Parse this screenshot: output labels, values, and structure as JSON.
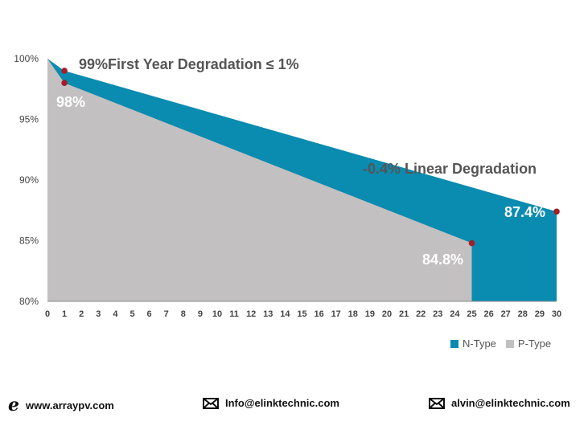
{
  "chart_data": {
    "type": "area",
    "title": "",
    "xlabel": "",
    "ylabel": "",
    "x_ticks": [
      "0",
      "1",
      "2",
      "3",
      "4",
      "5",
      "6",
      "7",
      "8",
      "9",
      "10",
      "11",
      "12",
      "13",
      "14",
      "15",
      "16",
      "17",
      "18",
      "19",
      "20",
      "21",
      "22",
      "23",
      "24",
      "25",
      "26",
      "27",
      "28",
      "29",
      "30"
    ],
    "y_ticks": [
      "80%",
      "85%",
      "90%",
      "95%",
      "100%"
    ],
    "xlim": [
      0,
      30
    ],
    "ylim": [
      80,
      100
    ],
    "series": [
      {
        "name": "N-Type",
        "color": "#0a8bb0",
        "x": [
          0,
          1,
          30
        ],
        "values": [
          100,
          99,
          87.4
        ]
      },
      {
        "name": "P-Type",
        "color": "#c2c0c1",
        "x": [
          0,
          1,
          25
        ],
        "values": [
          100,
          98,
          84.8
        ]
      }
    ],
    "annotations": [
      {
        "text": "99%",
        "style": "dark"
      },
      {
        "text": "First Year Degradation ≤ 1%",
        "style": "dark"
      },
      {
        "text": "98%",
        "style": "white"
      },
      {
        "text": "-0.4% Linear Degradation",
        "style": "dark"
      },
      {
        "text": "87.4%",
        "style": "white"
      },
      {
        "text": "84.8%",
        "style": "white"
      }
    ],
    "marker_color": "#a31f2a",
    "legend": [
      "N-Type",
      "P-Type"
    ],
    "legend_position": "bottom-right"
  },
  "footer": {
    "website": "www.arraypv.com",
    "email1": "Info@elinktechnic.com",
    "email2": "alvin@elinktechnic.com"
  }
}
